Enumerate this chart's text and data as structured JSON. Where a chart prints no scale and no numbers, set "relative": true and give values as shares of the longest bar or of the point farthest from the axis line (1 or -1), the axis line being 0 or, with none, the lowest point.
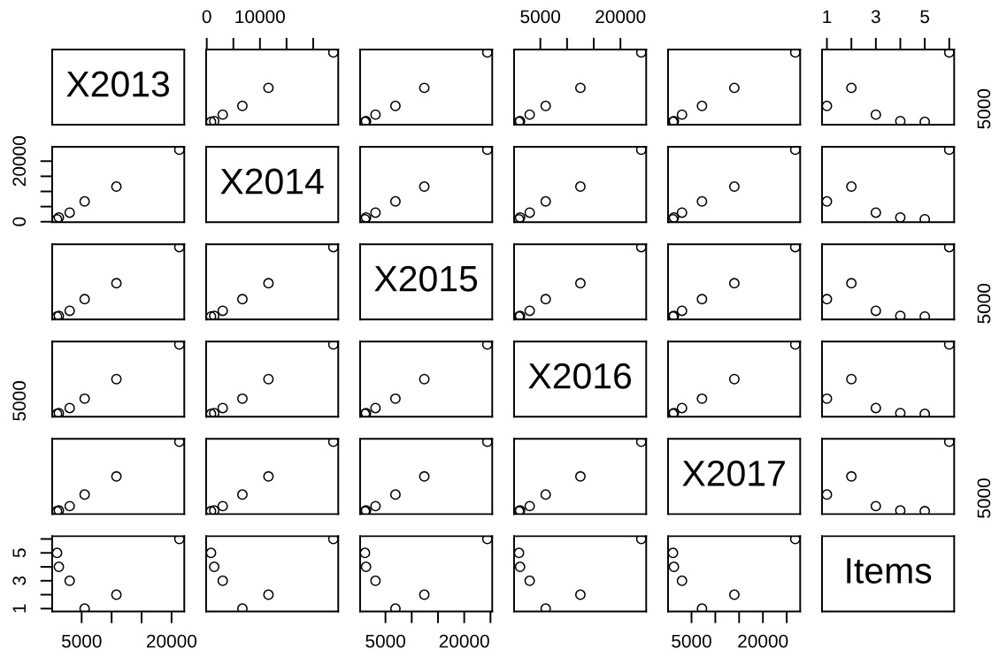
{
  "chart_data": [
    {
      "type": "other",
      "annotations": [
        "X2013"
      ]
    },
    {
      "type": "scatter",
      "x": [
        6700,
        11600,
        3000,
        1400,
        800,
        23800
      ],
      "values": [
        0.26,
        0.51,
        0.14,
        0.05,
        0.04,
        1
      ],
      "relative": true,
      "xlim": [
        -120,
        24720
      ],
      "xticks": [
        0,
        {
          "value": 5000,
          "label": null
        },
        10000,
        {
          "value": 15000,
          "label": null
        },
        {
          "value": 20000,
          "label": null
        }
      ],
      "tick_labels": "x",
      "color": "#000000",
      "marker": "circle"
    },
    {
      "type": "scatter",
      "x": [
        6900,
        12400,
        3100,
        1300,
        1100,
        24400
      ],
      "values": [
        0.26,
        0.51,
        0.14,
        0.05,
        0.04,
        1
      ],
      "relative": true,
      "xlim": [
        170,
        25330
      ],
      "tick_labels": false,
      "color": "#000000",
      "marker": "circle"
    },
    {
      "type": "scatter",
      "x": [
        6000,
        12500,
        3000,
        1200,
        1000,
        23900
      ],
      "values": [
        0.26,
        0.51,
        0.14,
        0.05,
        0.04,
        1
      ],
      "relative": true,
      "xlim": [
        80,
        24820
      ],
      "xticks": [
        5000,
        {
          "value": 10000,
          "label": null
        },
        {
          "value": 15000,
          "label": null
        },
        20000
      ],
      "tick_labels": "x",
      "color": "#000000",
      "marker": "circle"
    },
    {
      "type": "scatter",
      "x": [
        7200,
        14000,
        3000,
        1300,
        1100,
        26800
      ],
      "values": [
        0.26,
        0.51,
        0.14,
        0.05,
        0.04,
        1
      ],
      "relative": true,
      "xlim": [
        70,
        27830
      ],
      "tick_labels": false,
      "color": "#000000",
      "marker": "circle"
    },
    {
      "type": "scatter",
      "x": [
        1,
        2,
        3,
        4,
        5,
        6
      ],
      "values": [
        0.26,
        0.51,
        0.14,
        0.05,
        0.04,
        1
      ],
      "relative": true,
      "xlim": [
        0.8,
        6.2
      ],
      "xticks": [
        1,
        {
          "value": 2,
          "label": null
        },
        3,
        {
          "value": 4,
          "label": null
        },
        5,
        {
          "value": 6,
          "label": null
        }
      ],
      "tick_labels": "x",
      "annotations": [
        "5000"
      ],
      "color": "#000000",
      "marker": "circle"
    },
    {
      "type": "scatter",
      "x": [
        5500,
        10800,
        3000,
        1200,
        900,
        21300
      ],
      "values": [
        6700,
        11600,
        3000,
        1400,
        800,
        23800
      ],
      "xlim": [
        80,
        22120
      ],
      "ylim": [
        -120,
        24720
      ],
      "yticks": [
        0,
        {
          "value": 5000,
          "label": null
        },
        {
          "value": 10000,
          "label": null
        },
        {
          "value": 15000,
          "label": null
        },
        20000
      ],
      "tick_labels": "y",
      "color": "#000000",
      "marker": "circle"
    },
    {
      "type": "other",
      "annotations": [
        "X2014"
      ]
    },
    {
      "type": "scatter",
      "x": [
        6900,
        12400,
        3100,
        1300,
        1100,
        24400
      ],
      "values": [
        6700,
        11600,
        3000,
        1400,
        800,
        23800
      ],
      "xlim": [
        170,
        25330
      ],
      "ylim": [
        -120,
        24720
      ],
      "tick_labels": false,
      "color": "#000000",
      "marker": "circle"
    },
    {
      "type": "scatter",
      "x": [
        6000,
        12500,
        3000,
        1200,
        1000,
        23900
      ],
      "values": [
        6700,
        11600,
        3000,
        1400,
        800,
        23800
      ],
      "xlim": [
        80,
        24820
      ],
      "ylim": [
        -120,
        24720
      ],
      "tick_labels": false,
      "color": "#000000",
      "marker": "circle"
    },
    {
      "type": "scatter",
      "x": [
        7200,
        14000,
        3000,
        1300,
        1100,
        26800
      ],
      "values": [
        6700,
        11600,
        3000,
        1400,
        800,
        23800
      ],
      "xlim": [
        70,
        27830
      ],
      "ylim": [
        -120,
        24720
      ],
      "tick_labels": false,
      "color": "#000000",
      "marker": "circle"
    },
    {
      "type": "scatter",
      "x": [
        1,
        2,
        3,
        4,
        5,
        6
      ],
      "values": [
        6700,
        11600,
        3000,
        1400,
        800,
        23800
      ],
      "xlim": [
        0.8,
        6.2
      ],
      "ylim": [
        -120,
        24720
      ],
      "tick_labels": false,
      "color": "#000000",
      "marker": "circle"
    },
    {
      "type": "scatter",
      "x": [
        5500,
        10800,
        3000,
        1200,
        900,
        21300
      ],
      "values": [
        0.28,
        0.5,
        0.12,
        0.05,
        0.04,
        1
      ],
      "relative": true,
      "xlim": [
        80,
        22120
      ],
      "tick_labels": false,
      "color": "#000000",
      "marker": "circle"
    },
    {
      "type": "scatter",
      "x": [
        6700,
        11600,
        3000,
        1400,
        800,
        23800
      ],
      "values": [
        0.28,
        0.5,
        0.12,
        0.05,
        0.04,
        1
      ],
      "relative": true,
      "xlim": [
        -120,
        24720
      ],
      "tick_labels": false,
      "color": "#000000",
      "marker": "circle"
    },
    {
      "type": "other",
      "annotations": [
        "X2015"
      ]
    },
    {
      "type": "scatter",
      "x": [
        6000,
        12500,
        3000,
        1200,
        1000,
        23900
      ],
      "values": [
        0.28,
        0.5,
        0.12,
        0.05,
        0.04,
        1
      ],
      "relative": true,
      "xlim": [
        80,
        24820
      ],
      "tick_labels": false,
      "color": "#000000",
      "marker": "circle"
    },
    {
      "type": "scatter",
      "x": [
        7200,
        14000,
        3000,
        1300,
        1100,
        26800
      ],
      "values": [
        0.28,
        0.5,
        0.12,
        0.05,
        0.04,
        1
      ],
      "relative": true,
      "xlim": [
        70,
        27830
      ],
      "tick_labels": false,
      "color": "#000000",
      "marker": "circle"
    },
    {
      "type": "scatter",
      "x": [
        1,
        2,
        3,
        4,
        5,
        6
      ],
      "values": [
        0.28,
        0.5,
        0.12,
        0.05,
        0.04,
        1
      ],
      "relative": true,
      "xlim": [
        0.8,
        6.2
      ],
      "tick_labels": false,
      "annotations": [
        "5000"
      ],
      "color": "#000000",
      "marker": "circle"
    },
    {
      "type": "scatter",
      "x": [
        5500,
        10800,
        3000,
        1200,
        900,
        21300
      ],
      "values": [
        0.25,
        0.52,
        0.12,
        0.05,
        0.04,
        1
      ],
      "relative": true,
      "xlim": [
        80,
        22120
      ],
      "tick_labels": false,
      "annotations": [
        "5000"
      ],
      "color": "#000000",
      "marker": "circle"
    },
    {
      "type": "scatter",
      "x": [
        6700,
        11600,
        3000,
        1400,
        800,
        23800
      ],
      "values": [
        0.25,
        0.52,
        0.12,
        0.05,
        0.04,
        1
      ],
      "relative": true,
      "xlim": [
        -120,
        24720
      ],
      "tick_labels": false,
      "color": "#000000",
      "marker": "circle"
    },
    {
      "type": "scatter",
      "x": [
        6900,
        12400,
        3100,
        1300,
        1100,
        24400
      ],
      "values": [
        0.25,
        0.52,
        0.12,
        0.05,
        0.04,
        1
      ],
      "relative": true,
      "xlim": [
        170,
        25330
      ],
      "tick_labels": false,
      "color": "#000000",
      "marker": "circle"
    },
    {
      "type": "other",
      "annotations": [
        "X2016"
      ]
    },
    {
      "type": "scatter",
      "x": [
        7200,
        14000,
        3000,
        1300,
        1100,
        26800
      ],
      "values": [
        0.25,
        0.52,
        0.12,
        0.05,
        0.04,
        1
      ],
      "relative": true,
      "xlim": [
        70,
        27830
      ],
      "tick_labels": false,
      "color": "#000000",
      "marker": "circle"
    },
    {
      "type": "scatter",
      "x": [
        1,
        2,
        3,
        4,
        5,
        6
      ],
      "values": [
        0.25,
        0.52,
        0.12,
        0.05,
        0.04,
        1
      ],
      "relative": true,
      "xlim": [
        0.8,
        6.2
      ],
      "tick_labels": false,
      "color": "#000000",
      "marker": "circle"
    },
    {
      "type": "scatter",
      "x": [
        5500,
        10800,
        3000,
        1200,
        900,
        21300
      ],
      "values": [
        0.27,
        0.52,
        0.11,
        0.05,
        0.04,
        1
      ],
      "relative": true,
      "xlim": [
        80,
        22120
      ],
      "tick_labels": false,
      "color": "#000000",
      "marker": "circle"
    },
    {
      "type": "scatter",
      "x": [
        6700,
        11600,
        3000,
        1400,
        800,
        23800
      ],
      "values": [
        0.27,
        0.52,
        0.11,
        0.05,
        0.04,
        1
      ],
      "relative": true,
      "xlim": [
        -120,
        24720
      ],
      "tick_labels": false,
      "color": "#000000",
      "marker": "circle"
    },
    {
      "type": "scatter",
      "x": [
        6900,
        12400,
        3100,
        1300,
        1100,
        24400
      ],
      "values": [
        0.27,
        0.52,
        0.11,
        0.05,
        0.04,
        1
      ],
      "relative": true,
      "xlim": [
        170,
        25330
      ],
      "tick_labels": false,
      "color": "#000000",
      "marker": "circle"
    },
    {
      "type": "scatter",
      "x": [
        6000,
        12500,
        3000,
        1200,
        1000,
        23900
      ],
      "values": [
        0.27,
        0.52,
        0.11,
        0.05,
        0.04,
        1
      ],
      "relative": true,
      "xlim": [
        80,
        24820
      ],
      "tick_labels": false,
      "color": "#000000",
      "marker": "circle"
    },
    {
      "type": "other",
      "annotations": [
        "X2017"
      ]
    },
    {
      "type": "scatter",
      "x": [
        1,
        2,
        3,
        4,
        5,
        6
      ],
      "values": [
        0.27,
        0.52,
        0.11,
        0.05,
        0.04,
        1
      ],
      "relative": true,
      "xlim": [
        0.8,
        6.2
      ],
      "tick_labels": false,
      "annotations": [
        "5000"
      ],
      "color": "#000000",
      "marker": "circle"
    },
    {
      "type": "scatter",
      "x": [
        5500,
        10800,
        3000,
        1200,
        900,
        21300
      ],
      "values": [
        1,
        2,
        3,
        4,
        5,
        6
      ],
      "xlim": [
        80,
        22120
      ],
      "ylim": [
        0.8,
        6.2
      ],
      "xticks": [
        5000,
        {
          "value": 10000,
          "label": null
        },
        {
          "value": 15000,
          "label": null
        },
        20000
      ],
      "yticks": [
        1,
        {
          "value": 2,
          "label": null
        },
        3,
        {
          "value": 4,
          "label": null
        },
        5,
        {
          "value": 6,
          "label": null
        }
      ],
      "color": "#000000",
      "marker": "circle"
    },
    {
      "type": "scatter",
      "x": [
        6700,
        11600,
        3000,
        1400,
        800,
        23800
      ],
      "values": [
        1,
        2,
        3,
        4,
        5,
        6
      ],
      "xlim": [
        -120,
        24720
      ],
      "ylim": [
        0.8,
        6.2
      ],
      "tick_labels": false,
      "color": "#000000",
      "marker": "circle"
    },
    {
      "type": "scatter",
      "x": [
        6900,
        12400,
        3100,
        1300,
        1100,
        24400
      ],
      "values": [
        1,
        2,
        3,
        4,
        5,
        6
      ],
      "xlim": [
        170,
        25330
      ],
      "ylim": [
        0.8,
        6.2
      ],
      "xticks": [
        5000,
        {
          "value": 10000,
          "label": null
        },
        {
          "value": 15000,
          "label": null
        },
        20000,
        {
          "value": 25000,
          "label": null
        }
      ],
      "tick_labels": "x",
      "color": "#000000",
      "marker": "circle"
    },
    {
      "type": "scatter",
      "x": [
        6000,
        12500,
        3000,
        1200,
        1000,
        23900
      ],
      "values": [
        1,
        2,
        3,
        4,
        5,
        6
      ],
      "xlim": [
        80,
        24820
      ],
      "ylim": [
        0.8,
        6.2
      ],
      "tick_labels": false,
      "color": "#000000",
      "marker": "circle"
    },
    {
      "type": "scatter",
      "x": [
        7200,
        14000,
        3000,
        1300,
        1100,
        26800
      ],
      "values": [
        1,
        2,
        3,
        4,
        5,
        6
      ],
      "xlim": [
        70,
        27830
      ],
      "ylim": [
        0.8,
        6.2
      ],
      "xticks": [
        5000,
        {
          "value": 10000,
          "label": null
        },
        {
          "value": 15000,
          "label": null
        },
        20000,
        {
          "value": 25000,
          "label": null
        }
      ],
      "tick_labels": "x",
      "color": "#000000",
      "marker": "circle"
    },
    {
      "type": "other",
      "annotations": [
        "Items"
      ]
    }
  ]
}
